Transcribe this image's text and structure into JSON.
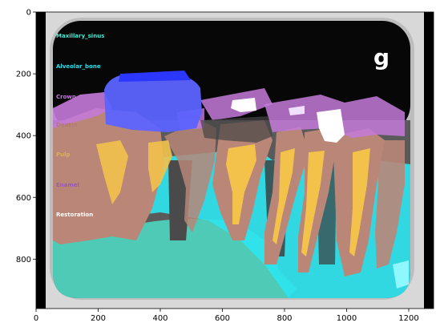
{
  "image": {
    "type": "segmented dental x-ray",
    "watermark_glyph": "g"
  },
  "axes": {
    "x_ticks": [
      "0",
      "200",
      "400",
      "600",
      "800",
      "1000",
      "1200"
    ],
    "y_ticks": [
      "0",
      "200",
      "400",
      "600",
      "800"
    ],
    "xlim": [
      0,
      1280
    ],
    "ylim": [
      960,
      0
    ]
  },
  "legend": [
    {
      "label": "Maxillary_sinus",
      "color": "#3fe9d3"
    },
    {
      "label": "Alveolar_bone",
      "color": "#18e6f0"
    },
    {
      "label": "Crown",
      "color": "#c47ad9"
    },
    {
      "label": "Dentin",
      "color": "#b07a6e"
    },
    {
      "label": "Pulp",
      "color": "#d9b355"
    },
    {
      "label": "Enamel",
      "color": "#9a58b8"
    },
    {
      "label": "Restoration",
      "color": "#ffffff"
    }
  ],
  "regions": {
    "maxillary_sinus": "#4dd6c0",
    "alveolar_bone": "#2ee6ef",
    "crown": "#c47ad9",
    "dentin": "#b98678",
    "pulp": "#f2c24b",
    "restoration_blue": "#5c63ff",
    "restoration": "#ffffff"
  }
}
